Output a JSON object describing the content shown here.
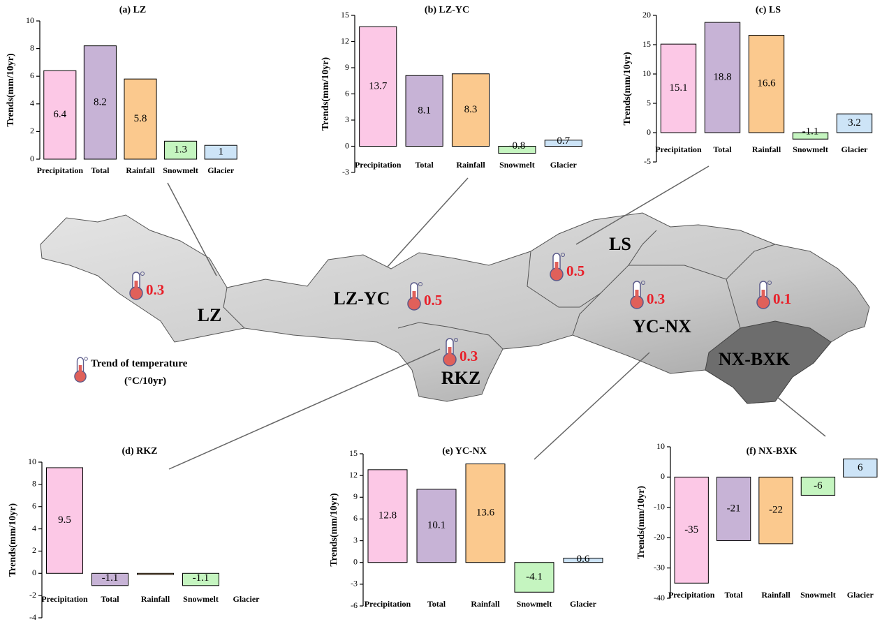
{
  "chart_data": [
    {
      "type": "bar",
      "title": "(a)  LZ",
      "y_label": "Trends(mm/10yr)",
      "categories": [
        "Precipitation",
        "Total",
        "Rainfall",
        "Snowmelt",
        "Glacier"
      ],
      "values": [
        6.4,
        8.2,
        5.8,
        1.3,
        1
      ],
      "colors": [
        "#fcc8e6",
        "#c7b3d6",
        "#fbc98e",
        "#c5f5c0",
        "#cde4f7"
      ],
      "ylim": [
        0,
        10
      ],
      "yticks": [
        0,
        2,
        4,
        6,
        8,
        10
      ]
    },
    {
      "type": "bar",
      "title": "(b)  LZ-YC",
      "y_label": "Trends(mm/10yr)",
      "categories": [
        "Precipitation",
        "Total",
        "Rainfall",
        "Snowmelt",
        "Glacier"
      ],
      "values": [
        13.7,
        8.1,
        8.3,
        -0.8,
        0.7
      ],
      "colors": [
        "#fcc8e6",
        "#c7b3d6",
        "#fbc98e",
        "#c5f5c0",
        "#cde4f7"
      ],
      "ylim": [
        -3,
        15
      ],
      "yticks": [
        -3,
        0,
        3,
        6,
        9,
        12,
        15
      ]
    },
    {
      "type": "bar",
      "title": "(c)  LS",
      "y_label": "Trends(mm/10yr)",
      "categories": [
        "Precipitation",
        "Total",
        "Rainfall",
        "Snowmelt",
        "Glacier"
      ],
      "values": [
        15.1,
        18.8,
        16.6,
        -1.1,
        3.2
      ],
      "colors": [
        "#fcc8e6",
        "#c7b3d6",
        "#fbc98e",
        "#c5f5c0",
        "#cde4f7"
      ],
      "ylim": [
        -5,
        20
      ],
      "yticks": [
        -5,
        0,
        5,
        10,
        15,
        20
      ]
    },
    {
      "type": "bar",
      "title": "(d)  RKZ",
      "y_label": "Trends(mm/10yr)",
      "categories": [
        "Precipitation",
        "Total",
        "Rainfall",
        "Snowmelt",
        "Glacier"
      ],
      "values": [
        9.5,
        -1.1,
        -0.1,
        -1.1,
        0
      ],
      "value_labels": [
        "9.5",
        "-1.1",
        null,
        "-1.1",
        null
      ],
      "colors": [
        "#fcc8e6",
        "#c7b3d6",
        "#fbc98e",
        "#c5f5c0",
        "#cde4f7"
      ],
      "ylim": [
        -4,
        10
      ],
      "yticks": [
        -4,
        -2,
        0,
        2,
        4,
        6,
        8,
        10
      ]
    },
    {
      "type": "bar",
      "title": "(e)  YC-NX",
      "y_label": "Trends(mm/10yr)",
      "categories": [
        "Precipitation",
        "Total",
        "Rainfall",
        "Snowmelt",
        "Glacier"
      ],
      "values": [
        12.8,
        10.1,
        13.6,
        -4.1,
        0.6
      ],
      "colors": [
        "#fcc8e6",
        "#c7b3d6",
        "#fbc98e",
        "#c5f5c0",
        "#cde4f7"
      ],
      "ylim": [
        -6,
        15
      ],
      "yticks": [
        -6,
        -3,
        0,
        3,
        6,
        9,
        12,
        15
      ]
    },
    {
      "type": "bar",
      "title": "(f)  NX-BXK",
      "y_label": "Trends(mm/10yr)",
      "categories": [
        "Precipitation",
        "Total",
        "Rainfall",
        "Snowmelt",
        "Glacier"
      ],
      "values": [
        -35,
        -21,
        -22,
        -6,
        6
      ],
      "colors": [
        "#fcc8e6",
        "#c7b3d6",
        "#fbc98e",
        "#c5f5c0",
        "#cde4f7"
      ],
      "ylim": [
        -40,
        10
      ],
      "yticks": [
        -40,
        -30,
        -20,
        -10,
        0,
        10
      ]
    }
  ],
  "map": {
    "regions": [
      {
        "label": "LZ",
        "temperature_trend": 0.3
      },
      {
        "label": "LZ-YC",
        "temperature_trend": 0.5
      },
      {
        "label": "LS",
        "temperature_trend": 0.5
      },
      {
        "label": "RKZ",
        "temperature_trend": 0.3
      },
      {
        "label": "YC-NX",
        "temperature_trend": 0.3
      },
      {
        "label": "NX-BXK",
        "temperature_trend": 0.1
      }
    ],
    "legend": "Trend of temperature",
    "legend_unit": "(°C/10yr)"
  }
}
